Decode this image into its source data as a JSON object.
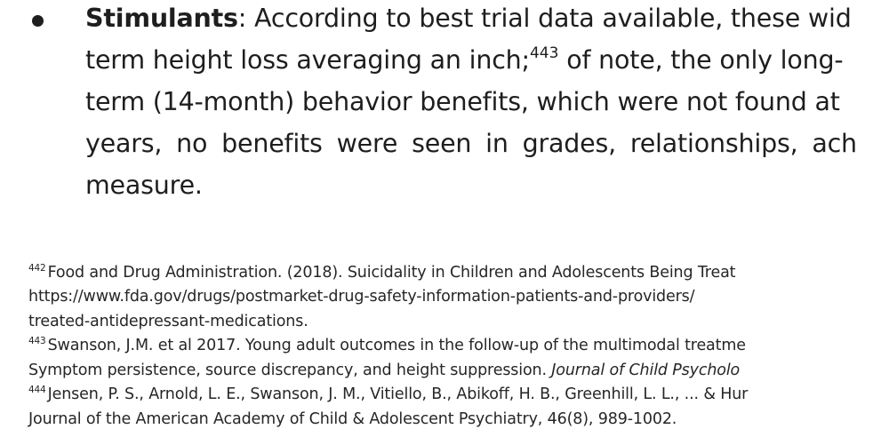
{
  "main_text": {
    "bullet_term": "Stimulants",
    "line1_rest": ": According to best trial data available, these wid",
    "line2_a": "term height loss averaging an inch;",
    "line2_ref": "443",
    "line2_b": " of note, the only long-",
    "line3": "term (14-month) behavior benefits, which were not found at",
    "line4": "years, no benefits were seen in grades, relationships, ach",
    "line5": "measure."
  },
  "footnotes": {
    "fn442_num": "442",
    "fn442_line1": "Food and Drug Administration. (2018). Suicidality in Children and Adolescents Being Treat",
    "fn442_line2": "https://www.fda.gov/drugs/postmarket-drug-safety-information-patients-and-providers/",
    "fn442_line3": "treated-antidepressant-medications.",
    "fn443_num": "443",
    "fn443_line1": "Swanson, J.M. et al 2017. Young adult outcomes in the follow-up of the multimodal treatme",
    "fn443_line2_a": "Symptom persistence, source discrepancy, and height suppression. ",
    "fn443_line2_italic": "Journal of Child Psycholo",
    "fn444_num": "444",
    "fn444_line1": "Jensen, P. S., Arnold, L. E., Swanson, J. M., Vitiello, B., Abikoff, H. B., Greenhill, L. L., ... & Hur",
    "fn444_line2": "Journal of the American Academy of Child & Adolescent Psychiatry, 46(8), 989-1002."
  }
}
